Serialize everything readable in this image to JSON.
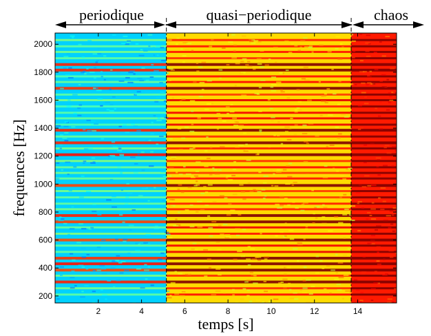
{
  "chart_data": {
    "type": "heatmap",
    "title": "",
    "xlabel": "temps [s]",
    "ylabel": "frequences [Hz]",
    "xlim": [
      0.0,
      15.8
    ],
    "ylim": [
      150,
      2080
    ],
    "xticks": [
      2,
      4,
      6,
      8,
      10,
      12,
      14
    ],
    "yticks": [
      200,
      400,
      600,
      800,
      1000,
      1200,
      1400,
      1600,
      1800,
      2000
    ],
    "colormap": "jet",
    "grid": false,
    "boundaries_s": [
      5.15,
      13.7
    ],
    "regimes": [
      {
        "label": "periodique",
        "t_start": 0.0,
        "t_end": 5.15,
        "mean_level": 0.33
      },
      {
        "label": "quasi−periodique",
        "t_start": 5.15,
        "t_end": 13.7,
        "mean_level": 0.66
      },
      {
        "label": "chaos",
        "t_start": 13.7,
        "t_end": 15.8,
        "mean_level": 0.85
      }
    ],
    "spectral_lines_hz": [
      210,
      255,
      300,
      345,
      385,
      430,
      470,
      515,
      560,
      600,
      645,
      690,
      730,
      775,
      820,
      860,
      905,
      950,
      990,
      1040,
      1080,
      1120,
      1165,
      1210,
      1255,
      1295,
      1340,
      1385,
      1425,
      1470,
      1510,
      1555,
      1600,
      1640,
      1685,
      1730,
      1770,
      1815,
      1855,
      1900,
      1945,
      1985,
      2030
    ],
    "strong_lines_hz": [
      300,
      385,
      430,
      470,
      600,
      730,
      775,
      990,
      1210,
      1295,
      1385,
      1685,
      1815,
      1855
    ]
  },
  "colors": {
    "background": "#ffffff",
    "arrow": "#000000",
    "divider": "#000000"
  }
}
